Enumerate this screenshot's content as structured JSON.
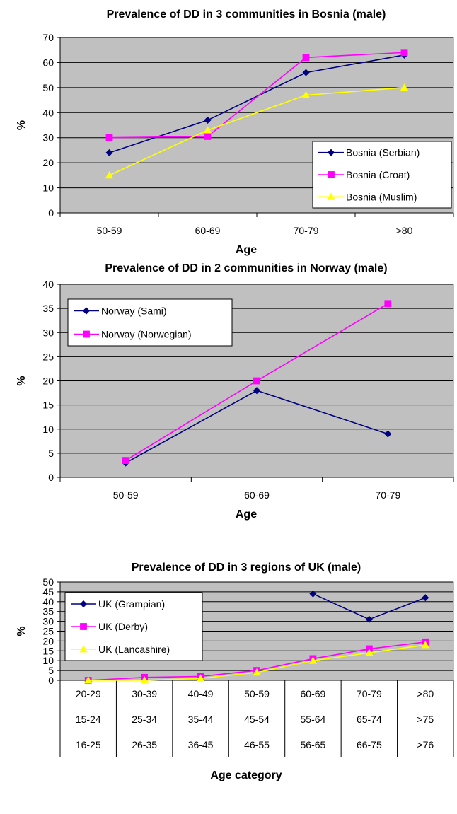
{
  "colors": {
    "plot_bg": "#C0C0C0",
    "grid": "#000000",
    "serbian": "#000080",
    "croat": "#FF00FF",
    "muslim": "#FFFF00"
  },
  "chart_data": [
    {
      "type": "line",
      "title": "Prevalence of DD in 3 communities in Bosnia (male)",
      "xlabel": "Age",
      "ylabel": "%",
      "categories": [
        "50-59",
        "60-69",
        "70-79",
        ">80"
      ],
      "ylim": [
        0,
        70
      ],
      "yticks": [
        0,
        10,
        20,
        30,
        40,
        50,
        60,
        70
      ],
      "grid": true,
      "legend_position": "bottom-right",
      "series": [
        {
          "name": "Bosnia (Serbian)",
          "values": [
            24,
            37,
            56,
            63
          ],
          "color": "#000080",
          "marker": "diamond"
        },
        {
          "name": "Bosnia (Croat)",
          "values": [
            30,
            30.5,
            62,
            64
          ],
          "color": "#FF00FF",
          "marker": "square"
        },
        {
          "name": "Bosnia (Muslim)",
          "values": [
            15,
            33,
            47,
            50
          ],
          "color": "#FFFF00",
          "marker": "triangle"
        }
      ]
    },
    {
      "type": "line",
      "title": "Prevalence of DD in 2 communities in Norway (male)",
      "xlabel": "Age",
      "ylabel": "%",
      "categories": [
        "50-59",
        "60-69",
        "70-79"
      ],
      "ylim": [
        0,
        40
      ],
      "yticks": [
        0,
        5,
        10,
        15,
        20,
        25,
        30,
        35,
        40
      ],
      "grid": true,
      "legend_position": "top-left",
      "series": [
        {
          "name": "Norway (Sami)",
          "values": [
            3,
            18,
            9
          ],
          "color": "#000080",
          "marker": "diamond"
        },
        {
          "name": "Norway (Norwegian)",
          "values": [
            3.5,
            20,
            36
          ],
          "color": "#FF00FF",
          "marker": "square"
        }
      ]
    },
    {
      "type": "line",
      "title": "Prevalence of DD in 3 regions of UK (male)",
      "xlabel": "Age category",
      "ylabel": "%",
      "category_rows": [
        [
          "20-29",
          "30-39",
          "40-49",
          "50-59",
          "60-69",
          "70-79",
          ">80"
        ],
        [
          "15-24",
          "25-34",
          "35-44",
          "45-54",
          "55-64",
          "65-74",
          ">75"
        ],
        [
          "16-25",
          "26-35",
          "36-45",
          "46-55",
          "56-65",
          "66-75",
          ">76"
        ]
      ],
      "ylim": [
        0,
        50
      ],
      "yticks": [
        0,
        5,
        10,
        15,
        20,
        25,
        30,
        35,
        40,
        45,
        50
      ],
      "grid": true,
      "legend_position": "top-left",
      "series": [
        {
          "name": "UK (Grampian)",
          "values": [
            null,
            null,
            null,
            null,
            44,
            31,
            42
          ],
          "color": "#000080",
          "marker": "diamond"
        },
        {
          "name": "UK (Derby)",
          "values": [
            0,
            1.5,
            2,
            5,
            11,
            16,
            19.5
          ],
          "color": "#FF00FF",
          "marker": "square"
        },
        {
          "name": "UK (Lancashire)",
          "values": [
            0,
            0,
            1,
            4,
            10,
            14,
            18
          ],
          "color": "#FFFF00",
          "marker": "triangle"
        }
      ]
    }
  ]
}
